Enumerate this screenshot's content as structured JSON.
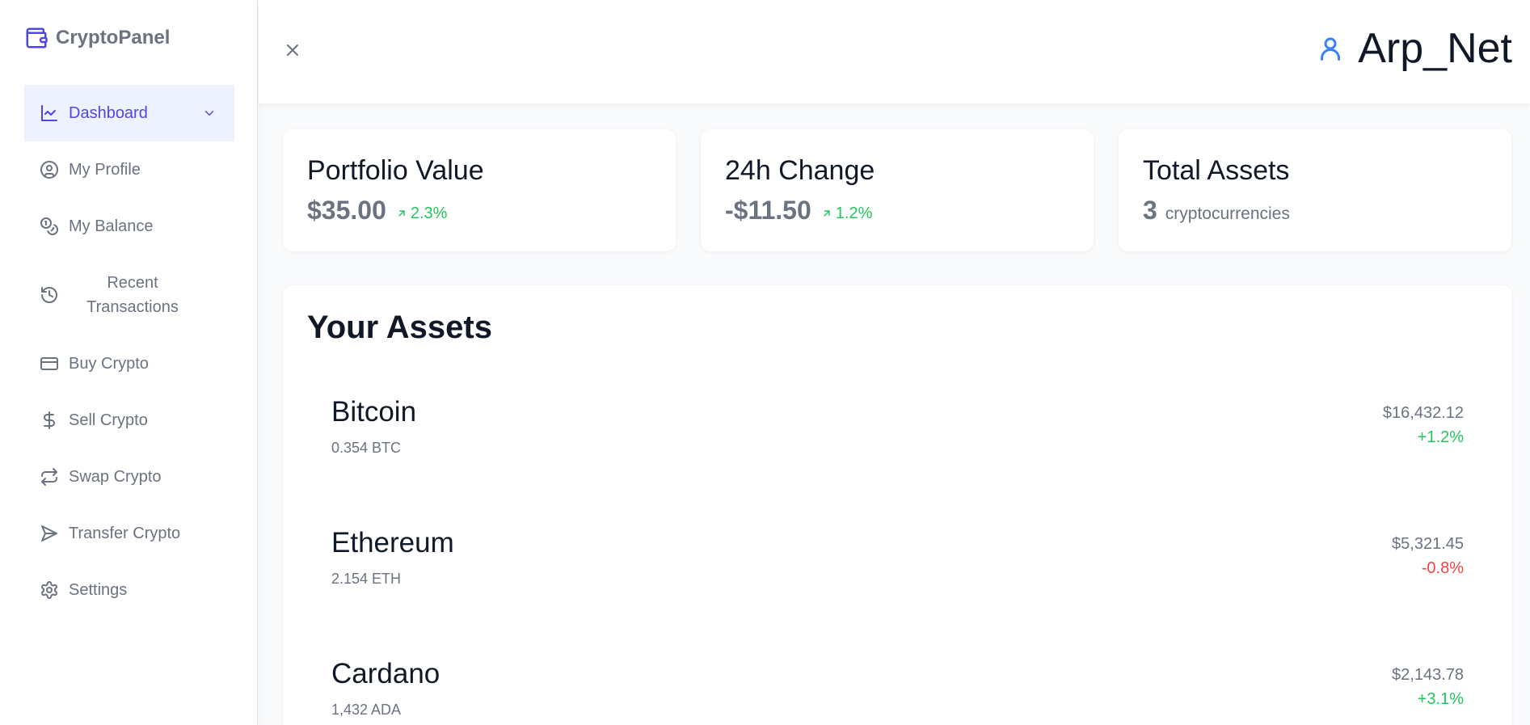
{
  "brand": {
    "name": "CryptoPanel",
    "icon": "wallet-icon",
    "accent": "#4f46e5"
  },
  "sidebar": {
    "items": [
      {
        "label": "Dashboard",
        "icon": "chart-line-icon",
        "active": true
      },
      {
        "label": "My Profile",
        "icon": "user-circle-icon"
      },
      {
        "label": "My Balance",
        "icon": "coins-icon"
      },
      {
        "label": "Recent Transactions",
        "icon": "history-icon"
      },
      {
        "label": "Buy Crypto",
        "icon": "credit-card-icon"
      },
      {
        "label": "Sell Crypto",
        "icon": "dollar-icon"
      },
      {
        "label": "Swap Crypto",
        "icon": "swap-icon"
      },
      {
        "label": "Transfer Crypto",
        "icon": "send-icon"
      },
      {
        "label": "Settings",
        "icon": "gear-icon"
      }
    ]
  },
  "header": {
    "username": "Arp_Net",
    "close_icon": "close-icon",
    "user_icon": "user-icon"
  },
  "stats": [
    {
      "title": "Portfolio Value",
      "value": "$35.00",
      "delta": "2.3%",
      "delta_color": "#22c55e"
    },
    {
      "title": "24h Change",
      "value": "-$11.50",
      "delta": "1.2%",
      "delta_color": "#22c55e"
    },
    {
      "title": "Total Assets",
      "value": "3",
      "suffix": "cryptocurrencies"
    }
  ],
  "assets": {
    "title": "Your Assets",
    "items": [
      {
        "name": "Bitcoin",
        "amount": "0.354 BTC",
        "value": "$16,432.12",
        "change": "+1.2%"
      },
      {
        "name": "Ethereum",
        "amount": "2.154 ETH",
        "value": "$5,321.45",
        "change": "-0.8%"
      },
      {
        "name": "Cardano",
        "amount": "1,432 ADA",
        "value": "$2,143.78",
        "change": "+3.1%"
      }
    ]
  }
}
